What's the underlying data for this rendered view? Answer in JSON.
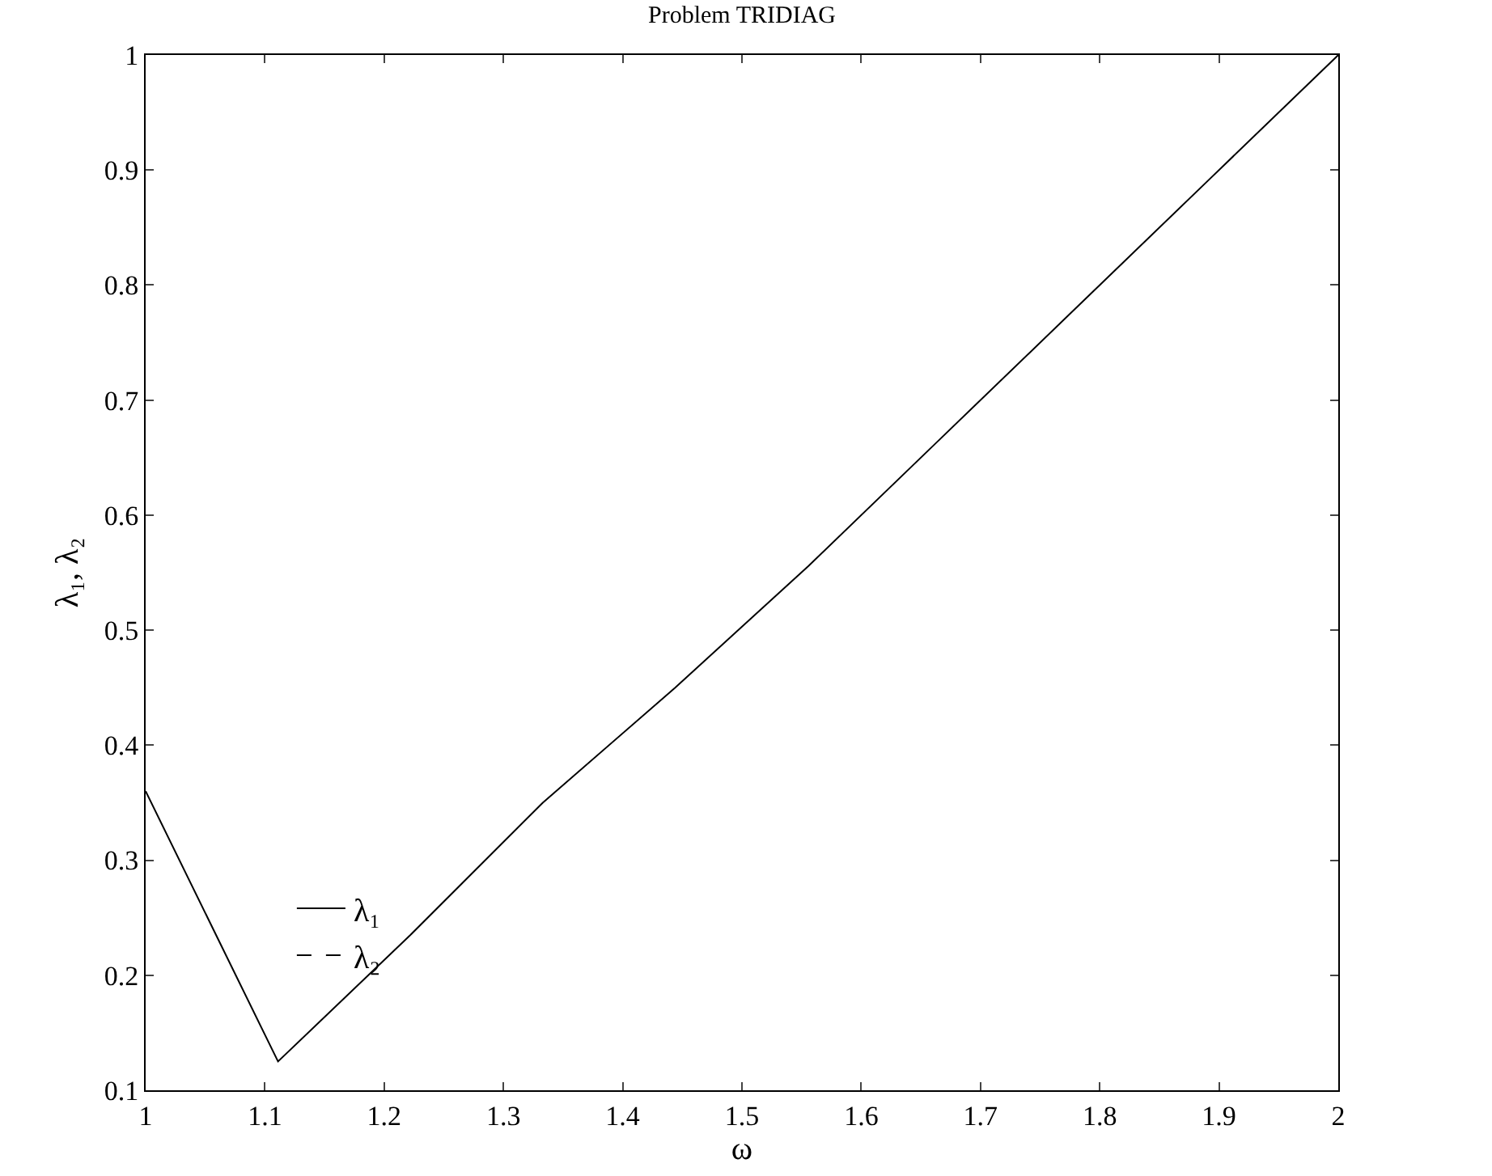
{
  "chart_data": {
    "type": "line",
    "title": "Problem TRIDIAG",
    "xlabel": "ω",
    "ylabel": "λ₁, λ₂",
    "x": [
      1,
      1.111,
      1.222,
      1.333,
      1.444,
      1.556,
      1.667,
      1.778,
      1.889,
      2
    ],
    "series": [
      {
        "name": "λ₁",
        "color": "#000000",
        "line_style": "solid",
        "values": [
          0.36,
          0.125,
          0.235,
          0.35,
          0.45,
          0.556,
          0.667,
          0.778,
          0.889,
          1
        ]
      },
      {
        "name": "λ₂",
        "color": "#000000",
        "line_style": "dashed",
        "values": [
          null,
          null,
          null,
          null,
          null,
          null,
          null,
          null,
          null,
          null
        ]
      }
    ],
    "xlim": [
      1,
      2
    ],
    "xticks": [
      1,
      1.1,
      1.2,
      1.3,
      1.4,
      1.5,
      1.6,
      1.7,
      1.8,
      1.9,
      2
    ],
    "ylim": [
      0.1,
      1
    ],
    "yticks": [
      0.1,
      0.2,
      0.3,
      0.4,
      0.5,
      0.6,
      0.7,
      0.8,
      0.9,
      1
    ],
    "legend": "bottom left",
    "marker": "none"
  }
}
